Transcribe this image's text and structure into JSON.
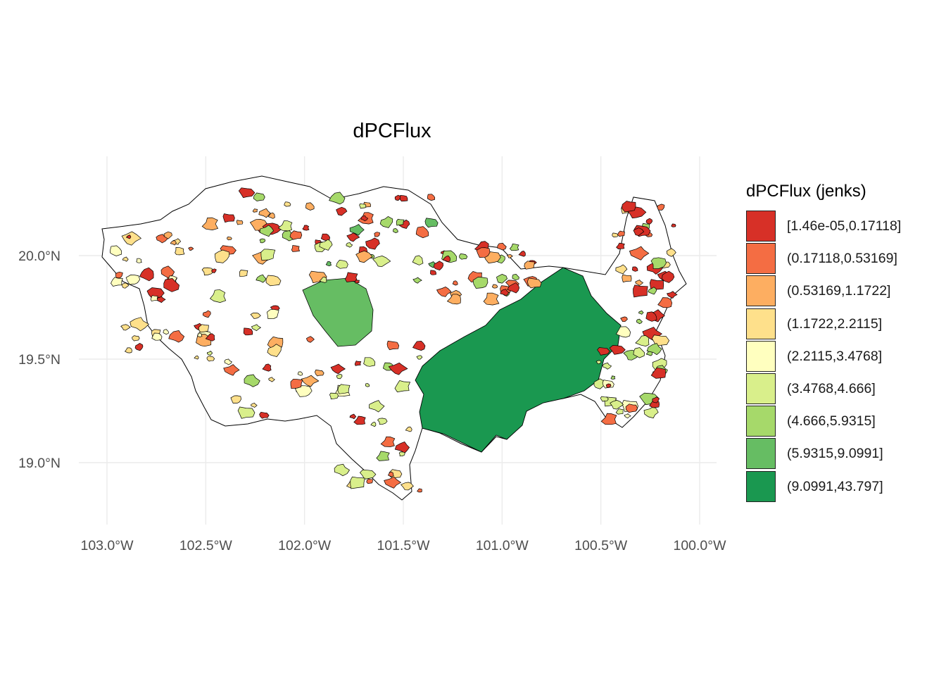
{
  "title": "dPCFlux",
  "map": {
    "lon_range": [
      -103.0,
      -100.0
    ],
    "lat_range": [
      18.75,
      20.42
    ],
    "x_ticks": [
      {
        "value": -103.0,
        "label": "103.0°W"
      },
      {
        "value": -102.5,
        "label": "102.5°W"
      },
      {
        "value": -102.0,
        "label": "102.0°W"
      },
      {
        "value": -101.5,
        "label": "101.5°W"
      },
      {
        "value": -101.0,
        "label": "101.0°W"
      },
      {
        "value": -100.5,
        "label": "100.5°W"
      },
      {
        "value": -100.0,
        "label": "100.0°W"
      }
    ],
    "y_ticks": [
      {
        "value": 19.0,
        "label": "19.0°N"
      },
      {
        "value": 19.5,
        "label": "19.5°N"
      },
      {
        "value": 20.0,
        "label": "20.0°N"
      }
    ],
    "grid": true
  },
  "legend": {
    "title": "dPCFlux (jenks)",
    "placement": "right",
    "classes": [
      {
        "label": "[1.46e-05,0.17118]",
        "color": "#d73027"
      },
      {
        "label": "(0.17118,0.53169]",
        "color": "#f46d43"
      },
      {
        "label": "(0.53169,1.1722]",
        "color": "#fdae61"
      },
      {
        "label": "(1.1722,2.2115]",
        "color": "#fee08b"
      },
      {
        "label": "(2.2115,3.4768]",
        "color": "#ffffbf"
      },
      {
        "label": "(3.4768,4.666]",
        "color": "#d9ef8b"
      },
      {
        "label": "(4.666,5.9315]",
        "color": "#a6d96a"
      },
      {
        "label": "(5.9315,9.0991]",
        "color": "#66bd63"
      },
      {
        "label": "(9.0991,43.797]",
        "color": "#1a9850"
      }
    ]
  }
}
